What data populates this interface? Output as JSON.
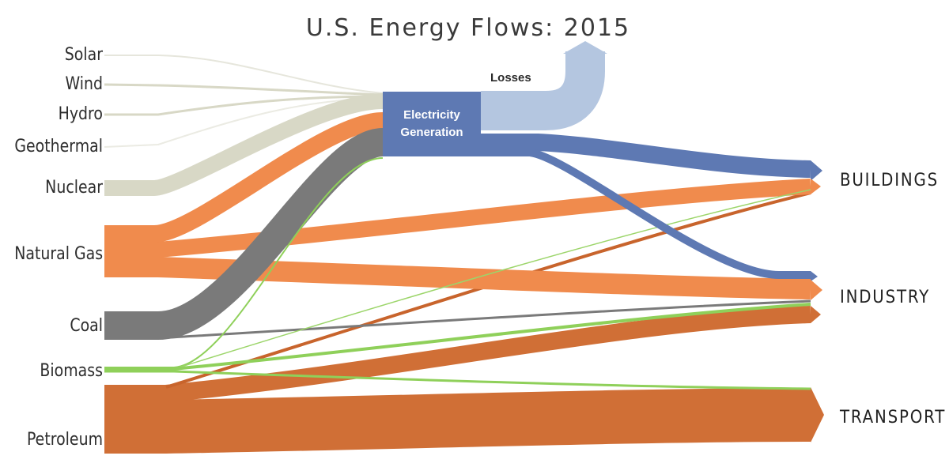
{
  "title": "U.S. Energy Flows: 2015",
  "sources": {
    "solar": "Solar",
    "wind": "Wind",
    "hydro": "Hydro",
    "geothermal": "Geothermal",
    "nuclear": "Nuclear",
    "natural_gas": "Natural Gas",
    "coal": "Coal",
    "biomass": "Biomass",
    "petroleum": "Petroleum"
  },
  "middle": {
    "electricity_line1": "Electricity",
    "electricity_line2": "Generation",
    "losses": "Losses"
  },
  "sinks": {
    "buildings": "BUILDINGS",
    "industry": "INDUSTRY",
    "transport": "TRANSPORT"
  },
  "colors": {
    "renewables": "#d8d8c6",
    "nuclear": "#d8d8c6",
    "natural_gas": "#f08b4d",
    "coal": "#7a7a7a",
    "biomass": "#8fd05a",
    "petroleum": "#d06f36",
    "electricity": "#5e79b3",
    "losses": "#b4c6e0"
  }
}
